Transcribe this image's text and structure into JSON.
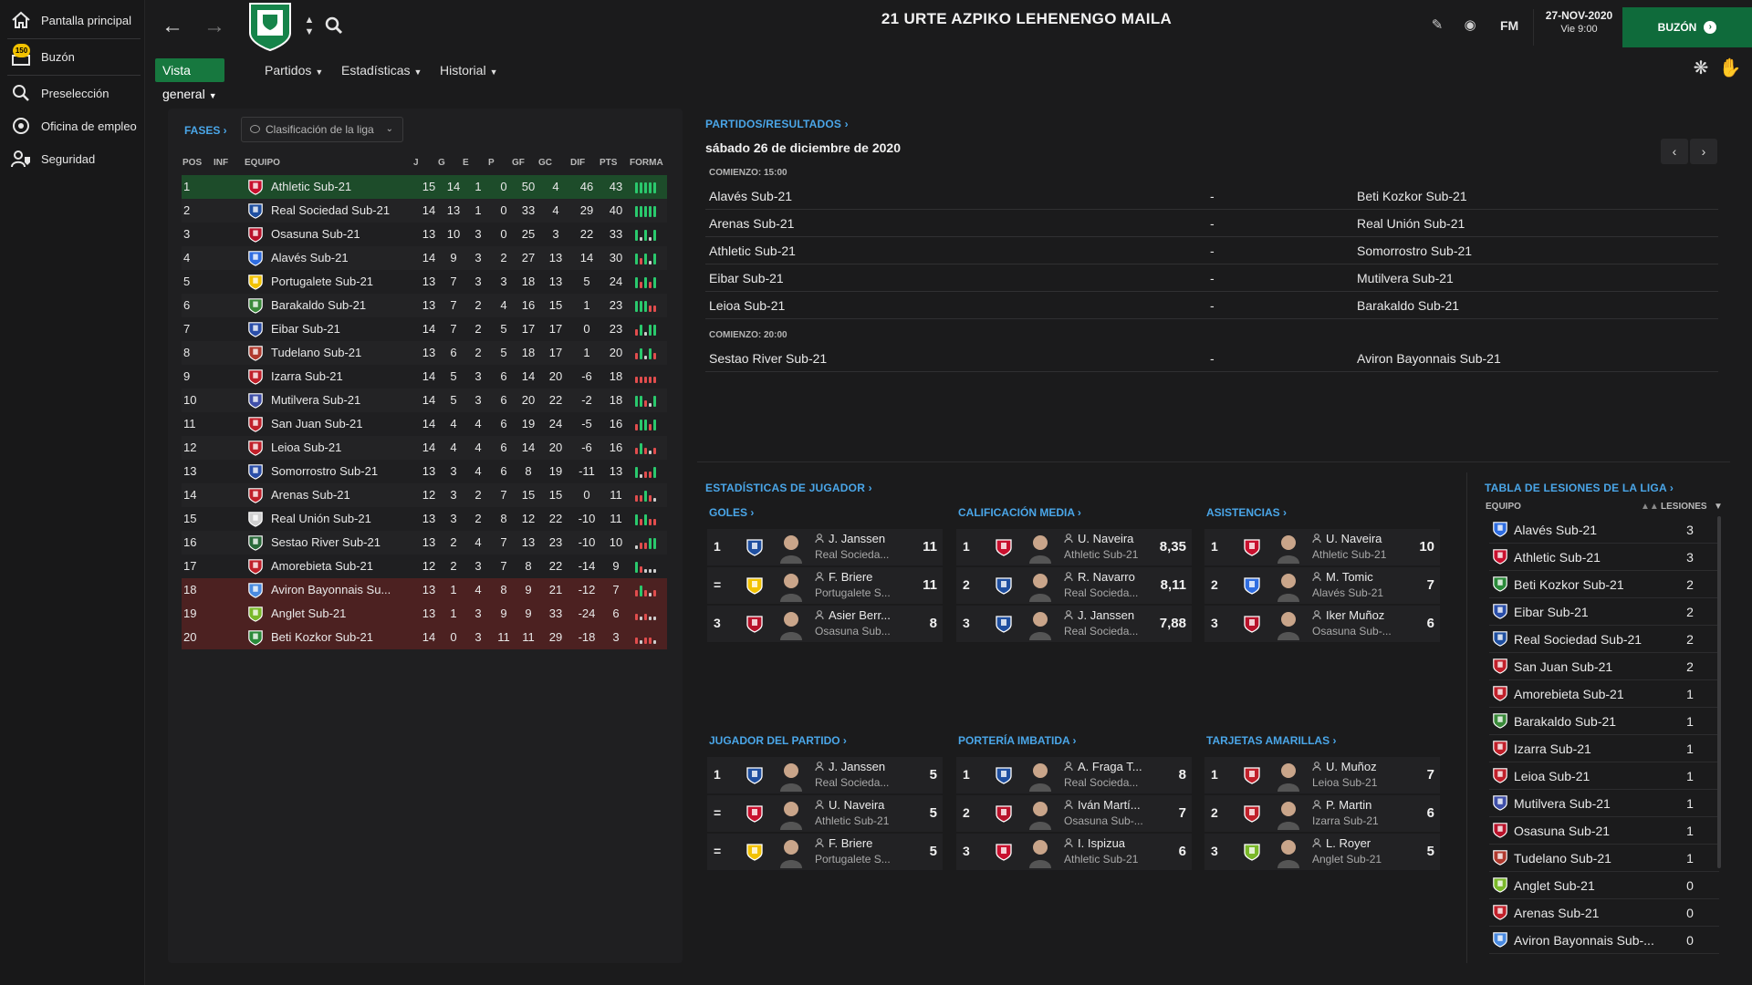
{
  "sidebar": {
    "items": [
      {
        "label": "Pantalla principal",
        "icon": "home-icon"
      },
      {
        "label": "Buzón",
        "icon": "inbox-icon",
        "badge": "150"
      },
      {
        "label": "Preselección",
        "icon": "search-icon"
      },
      {
        "label": "Oficina de empleo",
        "icon": "job-office-icon"
      },
      {
        "label": "Seguridad",
        "icon": "security-icon"
      }
    ]
  },
  "header": {
    "title": "21 URTE AZPIKO LEHENENGO MAILA",
    "brand": "FM",
    "date": "27-NOV-2020",
    "time": "Vie 9:00",
    "inbox_button": "BUZÓN",
    "inbox_arrow": "›"
  },
  "tabs": [
    {
      "label": "Vista general"
    },
    {
      "label": "Partidos"
    },
    {
      "label": "Estadísticas"
    },
    {
      "label": "Historial"
    }
  ],
  "league": {
    "fases_label": "FASES ›",
    "dropdown": "Clasificación de la liga",
    "columns": {
      "pos": "POS",
      "inf": "INF",
      "team": "EQUIPO",
      "j": "J",
      "g": "G",
      "e": "E",
      "p": "P",
      "gf": "GF",
      "gc": "GC",
      "dif": "DIF",
      "pts": "PTS",
      "form": "FORMA"
    },
    "rows": [
      {
        "pos": "1",
        "team": "Athletic Sub-21",
        "j": "15",
        "g": "14",
        "e": "1",
        "p": "0",
        "gf": "50",
        "gc": "4",
        "dif": "46",
        "pts": "43",
        "form": [
          "W",
          "W",
          "W",
          "W",
          "W"
        ],
        "color": "#c8102e"
      },
      {
        "pos": "2",
        "team": "Real Sociedad Sub-21",
        "j": "14",
        "g": "13",
        "e": "1",
        "p": "0",
        "gf": "33",
        "gc": "4",
        "dif": "29",
        "pts": "40",
        "form": [
          "W",
          "W",
          "W",
          "W",
          "W"
        ],
        "color": "#1f4fa0"
      },
      {
        "pos": "3",
        "team": "Osasuna Sub-21",
        "j": "13",
        "g": "10",
        "e": "3",
        "p": "0",
        "gf": "25",
        "gc": "3",
        "dif": "22",
        "pts": "33",
        "form": [
          "W",
          "D",
          "W",
          "D",
          "W"
        ],
        "color": "#b8122a"
      },
      {
        "pos": "4",
        "team": "Alavés Sub-21",
        "j": "14",
        "g": "9",
        "e": "3",
        "p": "2",
        "gf": "27",
        "gc": "13",
        "dif": "14",
        "pts": "30",
        "form": [
          "W",
          "L",
          "W",
          "D",
          "W"
        ],
        "color": "#2f6de0"
      },
      {
        "pos": "5",
        "team": "Portugalete Sub-21",
        "j": "13",
        "g": "7",
        "e": "3",
        "p": "3",
        "gf": "18",
        "gc": "13",
        "dif": "5",
        "pts": "24",
        "form": [
          "W",
          "L",
          "W",
          "L",
          "W"
        ],
        "color": "#f2c200"
      },
      {
        "pos": "6",
        "team": "Barakaldo Sub-21",
        "j": "13",
        "g": "7",
        "e": "2",
        "p": "4",
        "gf": "16",
        "gc": "15",
        "dif": "1",
        "pts": "23",
        "form": [
          "W",
          "W",
          "W",
          "L",
          "L"
        ],
        "color": "#3a8a3a"
      },
      {
        "pos": "7",
        "team": "Eibar Sub-21",
        "j": "14",
        "g": "7",
        "e": "2",
        "p": "5",
        "gf": "17",
        "gc": "17",
        "dif": "0",
        "pts": "23",
        "form": [
          "L",
          "W",
          "D",
          "W",
          "W"
        ],
        "color": "#2a4ea8"
      },
      {
        "pos": "8",
        "team": "Tudelano Sub-21",
        "j": "13",
        "g": "6",
        "e": "2",
        "p": "5",
        "gf": "18",
        "gc": "17",
        "dif": "1",
        "pts": "20",
        "form": [
          "L",
          "W",
          "D",
          "W",
          "L"
        ],
        "color": "#b03a2e"
      },
      {
        "pos": "9",
        "team": "Izarra Sub-21",
        "j": "14",
        "g": "5",
        "e": "3",
        "p": "6",
        "gf": "14",
        "gc": "20",
        "dif": "-6",
        "pts": "18",
        "form": [
          "L",
          "L",
          "L",
          "L",
          "L"
        ],
        "color": "#c0202a"
      },
      {
        "pos": "10",
        "team": "Mutilvera Sub-21",
        "j": "14",
        "g": "5",
        "e": "3",
        "p": "6",
        "gf": "20",
        "gc": "22",
        "dif": "-2",
        "pts": "18",
        "form": [
          "W",
          "W",
          "L",
          "D",
          "W"
        ],
        "color": "#3f4fa8"
      },
      {
        "pos": "11",
        "team": "San Juan Sub-21",
        "j": "14",
        "g": "4",
        "e": "4",
        "p": "6",
        "gf": "19",
        "gc": "24",
        "dif": "-5",
        "pts": "16",
        "form": [
          "L",
          "W",
          "W",
          "L",
          "W"
        ],
        "color": "#c0202a"
      },
      {
        "pos": "12",
        "team": "Leioa Sub-21",
        "j": "14",
        "g": "4",
        "e": "4",
        "p": "6",
        "gf": "14",
        "gc": "20",
        "dif": "-6",
        "pts": "16",
        "form": [
          "L",
          "W",
          "L",
          "D",
          "L"
        ],
        "color": "#c0202a"
      },
      {
        "pos": "13",
        "team": "Somorrostro Sub-21",
        "j": "13",
        "g": "3",
        "e": "4",
        "p": "6",
        "gf": "8",
        "gc": "19",
        "dif": "-11",
        "pts": "13",
        "form": [
          "W",
          "D",
          "L",
          "L",
          "W"
        ],
        "color": "#2a4ea8"
      },
      {
        "pos": "14",
        "team": "Arenas Sub-21",
        "j": "12",
        "g": "3",
        "e": "2",
        "p": "7",
        "gf": "15",
        "gc": "15",
        "dif": "0",
        "pts": "11",
        "form": [
          "L",
          "L",
          "W",
          "L",
          "D"
        ],
        "color": "#c0202a"
      },
      {
        "pos": "15",
        "team": "Real Unión Sub-21",
        "j": "13",
        "g": "3",
        "e": "2",
        "p": "8",
        "gf": "12",
        "gc": "22",
        "dif": "-10",
        "pts": "11",
        "form": [
          "W",
          "L",
          "W",
          "L",
          "L"
        ],
        "color": "#cfcfcf"
      },
      {
        "pos": "16",
        "team": "Sestao River Sub-21",
        "j": "13",
        "g": "2",
        "e": "4",
        "p": "7",
        "gf": "13",
        "gc": "23",
        "dif": "-10",
        "pts": "10",
        "form": [
          "D",
          "L",
          "L",
          "W",
          "W"
        ],
        "color": "#2a6a3a"
      },
      {
        "pos": "17",
        "team": "Amorebieta Sub-21",
        "j": "12",
        "g": "2",
        "e": "3",
        "p": "7",
        "gf": "8",
        "gc": "22",
        "dif": "-14",
        "pts": "9",
        "form": [
          "W",
          "L",
          "D",
          "D",
          "D"
        ],
        "color": "#c0202a"
      },
      {
        "pos": "18",
        "team": "Aviron Bayonnais Su...",
        "j": "13",
        "g": "1",
        "e": "4",
        "p": "8",
        "gf": "9",
        "gc": "21",
        "dif": "-12",
        "pts": "7",
        "form": [
          "L",
          "W",
          "L",
          "D",
          "L"
        ],
        "color": "#4a8ae0"
      },
      {
        "pos": "19",
        "team": "Anglet Sub-21",
        "j": "13",
        "g": "1",
        "e": "3",
        "p": "9",
        "gf": "9",
        "gc": "33",
        "dif": "-24",
        "pts": "6",
        "form": [
          "L",
          "D",
          "L",
          "D",
          "D"
        ],
        "color": "#7ab82a"
      },
      {
        "pos": "20",
        "team": "Beti Kozkor Sub-21",
        "j": "14",
        "g": "0",
        "e": "3",
        "p": "11",
        "gf": "11",
        "gc": "29",
        "dif": "-18",
        "pts": "3",
        "form": [
          "L",
          "D",
          "L",
          "L",
          "D"
        ],
        "color": "#2a8a3a"
      }
    ]
  },
  "fixtures": {
    "title": "PARTIDOS/RESULTADOS ›",
    "date": "sábado 26 de diciembre de 2020",
    "groups": [
      {
        "kickoff": "COMIENZO: 15:00",
        "matches": [
          {
            "home": "Alavés Sub-21",
            "sep": "-",
            "away": "Beti Kozkor Sub-21"
          },
          {
            "home": "Arenas Sub-21",
            "sep": "-",
            "away": "Real Unión Sub-21"
          },
          {
            "home": "Athletic Sub-21",
            "sep": "-",
            "away": "Somorrostro Sub-21"
          },
          {
            "home": "Eibar Sub-21",
            "sep": "-",
            "away": "Mutilvera Sub-21"
          },
          {
            "home": "Leioa Sub-21",
            "sep": "-",
            "away": "Barakaldo Sub-21"
          }
        ]
      },
      {
        "kickoff": "COMIENZO: 20:00",
        "matches": [
          {
            "home": "Sestao River Sub-21",
            "sep": "-",
            "away": "Aviron Bayonnais Sub-21"
          }
        ]
      }
    ]
  },
  "player_stats": {
    "title": "ESTADÍSTICAS DE JUGADOR ›",
    "boxes": [
      {
        "title": "GOLES ›",
        "rows": [
          {
            "rank": "1",
            "name": "J. Janssen",
            "team": "Real Socieda...",
            "value": "11",
            "color": "#1f4fa0"
          },
          {
            "rank": "=",
            "name": "F. Briere",
            "team": "Portugalete S...",
            "value": "11",
            "color": "#f2c200"
          },
          {
            "rank": "3",
            "name": "Asier Berr...",
            "team": "Osasuna Sub...",
            "value": "8",
            "color": "#b8122a"
          }
        ]
      },
      {
        "title": "CALIFICACIÓN MEDIA ›",
        "rows": [
          {
            "rank": "1",
            "name": "U. Naveira",
            "team": "Athletic Sub-21",
            "value": "8,35",
            "color": "#c8102e"
          },
          {
            "rank": "2",
            "name": "R. Navarro",
            "team": "Real Socieda...",
            "value": "8,11",
            "color": "#1f4fa0"
          },
          {
            "rank": "3",
            "name": "J. Janssen",
            "team": "Real Socieda...",
            "value": "7,88",
            "color": "#1f4fa0"
          }
        ]
      },
      {
        "title": "ASISTENCIAS ›",
        "rows": [
          {
            "rank": "1",
            "name": "U. Naveira",
            "team": "Athletic Sub-21",
            "value": "10",
            "color": "#c8102e"
          },
          {
            "rank": "2",
            "name": "M. Tomic",
            "team": "Alavés Sub-21",
            "value": "7",
            "color": "#2f6de0"
          },
          {
            "rank": "3",
            "name": "Iker Muñoz",
            "team": "Osasuna Sub-...",
            "value": "6",
            "color": "#b8122a"
          }
        ]
      },
      {
        "title": "JUGADOR DEL PARTIDO ›",
        "rows": [
          {
            "rank": "1",
            "name": "J. Janssen",
            "team": "Real Socieda...",
            "value": "5",
            "color": "#1f4fa0"
          },
          {
            "rank": "=",
            "name": "U. Naveira",
            "team": "Athletic Sub-21",
            "value": "5",
            "color": "#c8102e"
          },
          {
            "rank": "=",
            "name": "F. Briere",
            "team": "Portugalete S...",
            "value": "5",
            "color": "#f2c200"
          }
        ]
      },
      {
        "title": "PORTERÍA IMBATIDA ›",
        "rows": [
          {
            "rank": "1",
            "name": "A. Fraga T...",
            "team": "Real Socieda...",
            "value": "8",
            "color": "#1f4fa0"
          },
          {
            "rank": "2",
            "name": "Iván Martí...",
            "team": "Osasuna Sub-...",
            "value": "7",
            "color": "#b8122a"
          },
          {
            "rank": "3",
            "name": "I. Ispizua",
            "team": "Athletic Sub-21",
            "value": "6",
            "color": "#c8102e"
          }
        ]
      },
      {
        "title": "TARJETAS AMARILLAS ›",
        "rows": [
          {
            "rank": "1",
            "name": "U. Muñoz",
            "team": "Leioa Sub-21",
            "value": "7",
            "color": "#c0202a"
          },
          {
            "rank": "2",
            "name": "P. Martin",
            "team": "Izarra Sub-21",
            "value": "6",
            "color": "#c0202a"
          },
          {
            "rank": "3",
            "name": "L. Royer",
            "team": "Anglet Sub-21",
            "value": "5",
            "color": "#7ab82a"
          }
        ]
      }
    ]
  },
  "injuries": {
    "title": "TABLA DE LESIONES DE LA LIGA ›",
    "col_team": "EQUIPO",
    "col_inj": "LESIONES",
    "rows": [
      {
        "team": "Alavés Sub-21",
        "value": "3",
        "color": "#2f6de0"
      },
      {
        "team": "Athletic Sub-21",
        "value": "3",
        "color": "#c8102e"
      },
      {
        "team": "Beti Kozkor Sub-21",
        "value": "2",
        "color": "#2a8a3a"
      },
      {
        "team": "Eibar Sub-21",
        "value": "2",
        "color": "#2a4ea8"
      },
      {
        "team": "Real Sociedad Sub-21",
        "value": "2",
        "color": "#1f4fa0"
      },
      {
        "team": "San Juan Sub-21",
        "value": "2",
        "color": "#c0202a"
      },
      {
        "team": "Amorebieta Sub-21",
        "value": "1",
        "color": "#c0202a"
      },
      {
        "team": "Barakaldo Sub-21",
        "value": "1",
        "color": "#3a8a3a"
      },
      {
        "team": "Izarra Sub-21",
        "value": "1",
        "color": "#c0202a"
      },
      {
        "team": "Leioa Sub-21",
        "value": "1",
        "color": "#c0202a"
      },
      {
        "team": "Mutilvera Sub-21",
        "value": "1",
        "color": "#3f4fa8"
      },
      {
        "team": "Osasuna Sub-21",
        "value": "1",
        "color": "#b8122a"
      },
      {
        "team": "Tudelano Sub-21",
        "value": "1",
        "color": "#b03a2e"
      },
      {
        "team": "Anglet Sub-21",
        "value": "0",
        "color": "#7ab82a"
      },
      {
        "team": "Arenas Sub-21",
        "value": "0",
        "color": "#c0202a"
      },
      {
        "team": "Aviron Bayonnais Sub-...",
        "value": "0",
        "color": "#4a8ae0"
      }
    ]
  }
}
